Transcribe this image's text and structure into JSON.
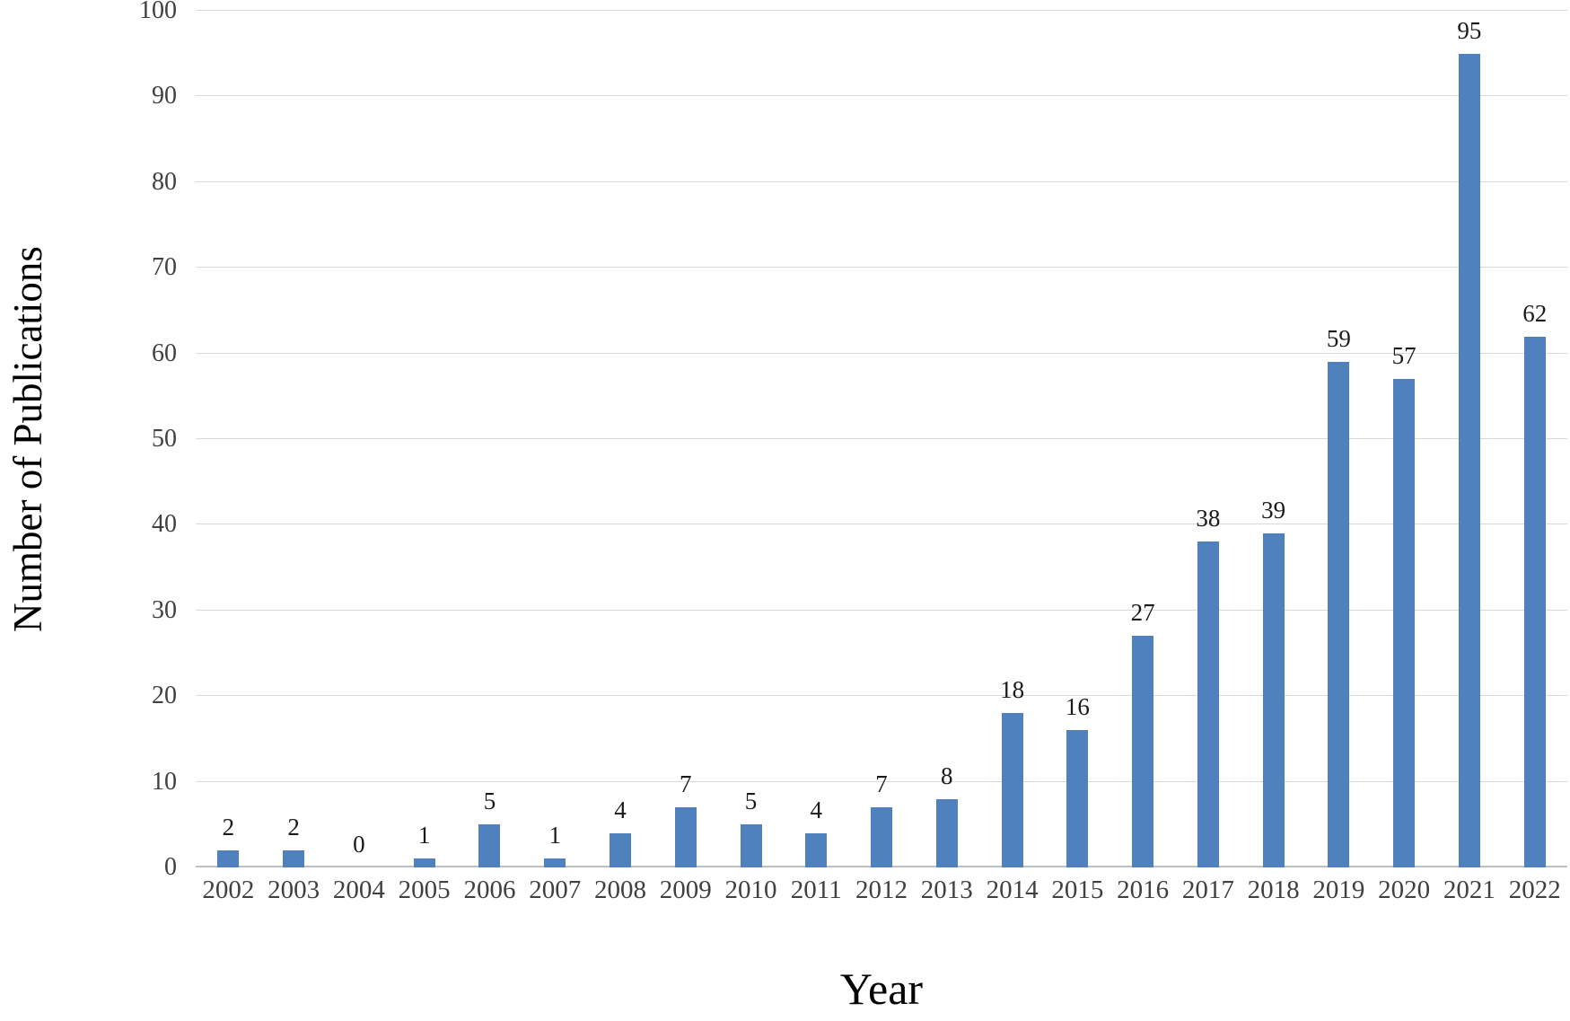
{
  "chart_data": {
    "type": "bar",
    "title": "",
    "xlabel": "Year",
    "ylabel": "Number of Publications",
    "categories": [
      "2002",
      "2003",
      "2004",
      "2005",
      "2006",
      "2007",
      "2008",
      "2009",
      "2010",
      "2011",
      "2012",
      "2013",
      "2014",
      "2015",
      "2016",
      "2017",
      "2018",
      "2019",
      "2020",
      "2021",
      "2022"
    ],
    "values": [
      2,
      2,
      0,
      1,
      5,
      1,
      4,
      7,
      5,
      4,
      7,
      8,
      18,
      16,
      27,
      38,
      39,
      59,
      57,
      95,
      62
    ],
    "ylim": [
      0,
      100
    ],
    "ytick_step": 10,
    "yticks": [
      0,
      10,
      20,
      30,
      40,
      50,
      60,
      70,
      80,
      90,
      100
    ],
    "grid": true,
    "legend_position": "none",
    "data_labels": true,
    "colors": {
      "bar": "#4E81BD",
      "gridline": "#D9D9D9",
      "axis_line": "#BFBFBF",
      "tick_label": "#404040",
      "value_label": "#1A1A1A",
      "axis_title": "#000000"
    }
  }
}
